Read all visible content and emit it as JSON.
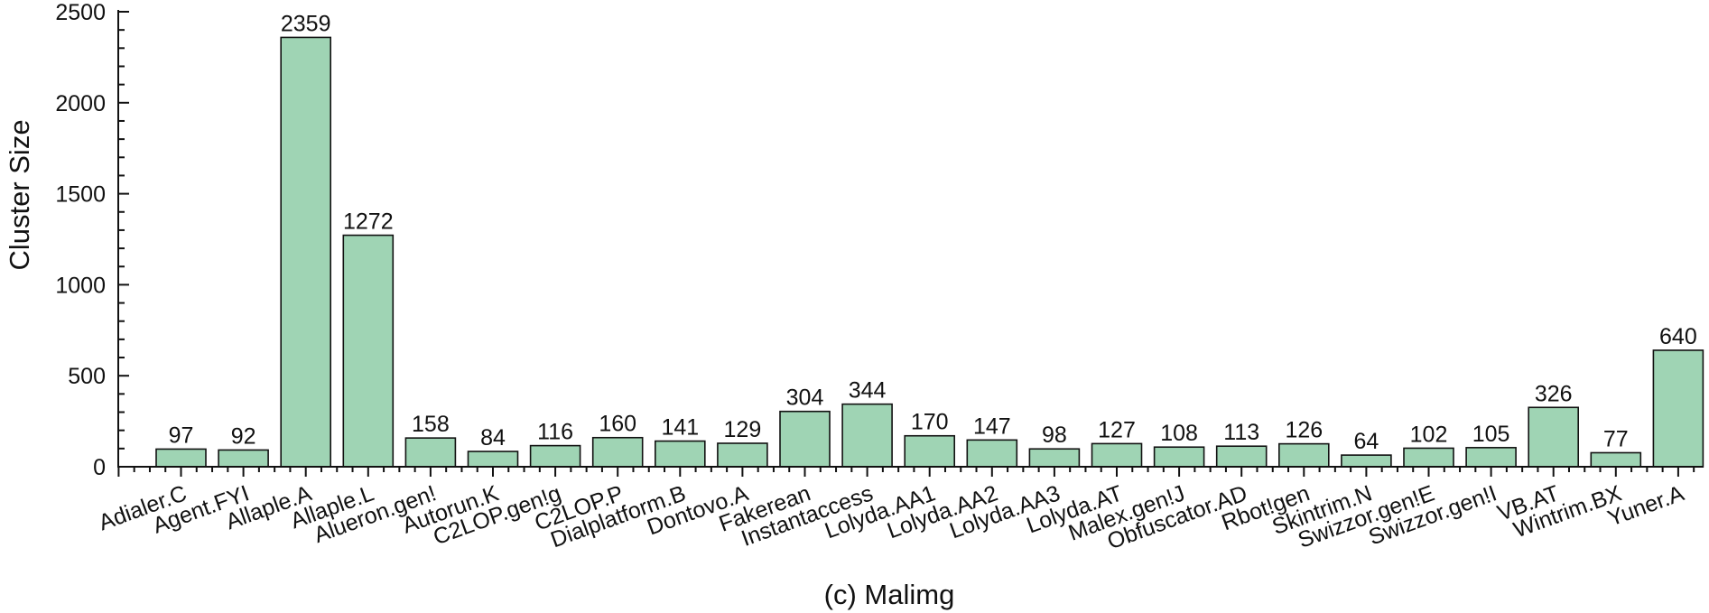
{
  "chart_data": {
    "type": "bar",
    "title": "",
    "xlabel": "(c) Malimg",
    "ylabel": "Cluster Size",
    "ylim": [
      0,
      2500
    ],
    "yticks": [
      0,
      500,
      1000,
      1500,
      2000,
      2500
    ],
    "grid": false,
    "bar_color": "#9fd4b4",
    "bar_edge_color": "#111111",
    "categories": [
      "Adialer.C",
      "Agent.FYI",
      "Allaple.A",
      "Allaple.L",
      "Alueron.gen!",
      "Autorun.K",
      "C2LOP.gen!g",
      "C2LOP.P",
      "Dialplatform.B",
      "Dontovo.A",
      "Fakerean",
      "Instantaccess",
      "Lolyda.AA1",
      "Lolyda.AA2",
      "Lolyda.AA3",
      "Lolyda.AT",
      "Malex.gen!J",
      "Obfuscator.AD",
      "Rbot!gen",
      "Skintrim.N",
      "Swizzor.gen!E",
      "Swizzor.gen!I",
      "VB.AT",
      "Wintrim.BX",
      "Yuner.A"
    ],
    "values": [
      97,
      92,
      2359,
      1272,
      158,
      84,
      116,
      160,
      141,
      129,
      304,
      344,
      170,
      147,
      98,
      127,
      108,
      113,
      126,
      64,
      102,
      105,
      326,
      77,
      640
    ]
  }
}
